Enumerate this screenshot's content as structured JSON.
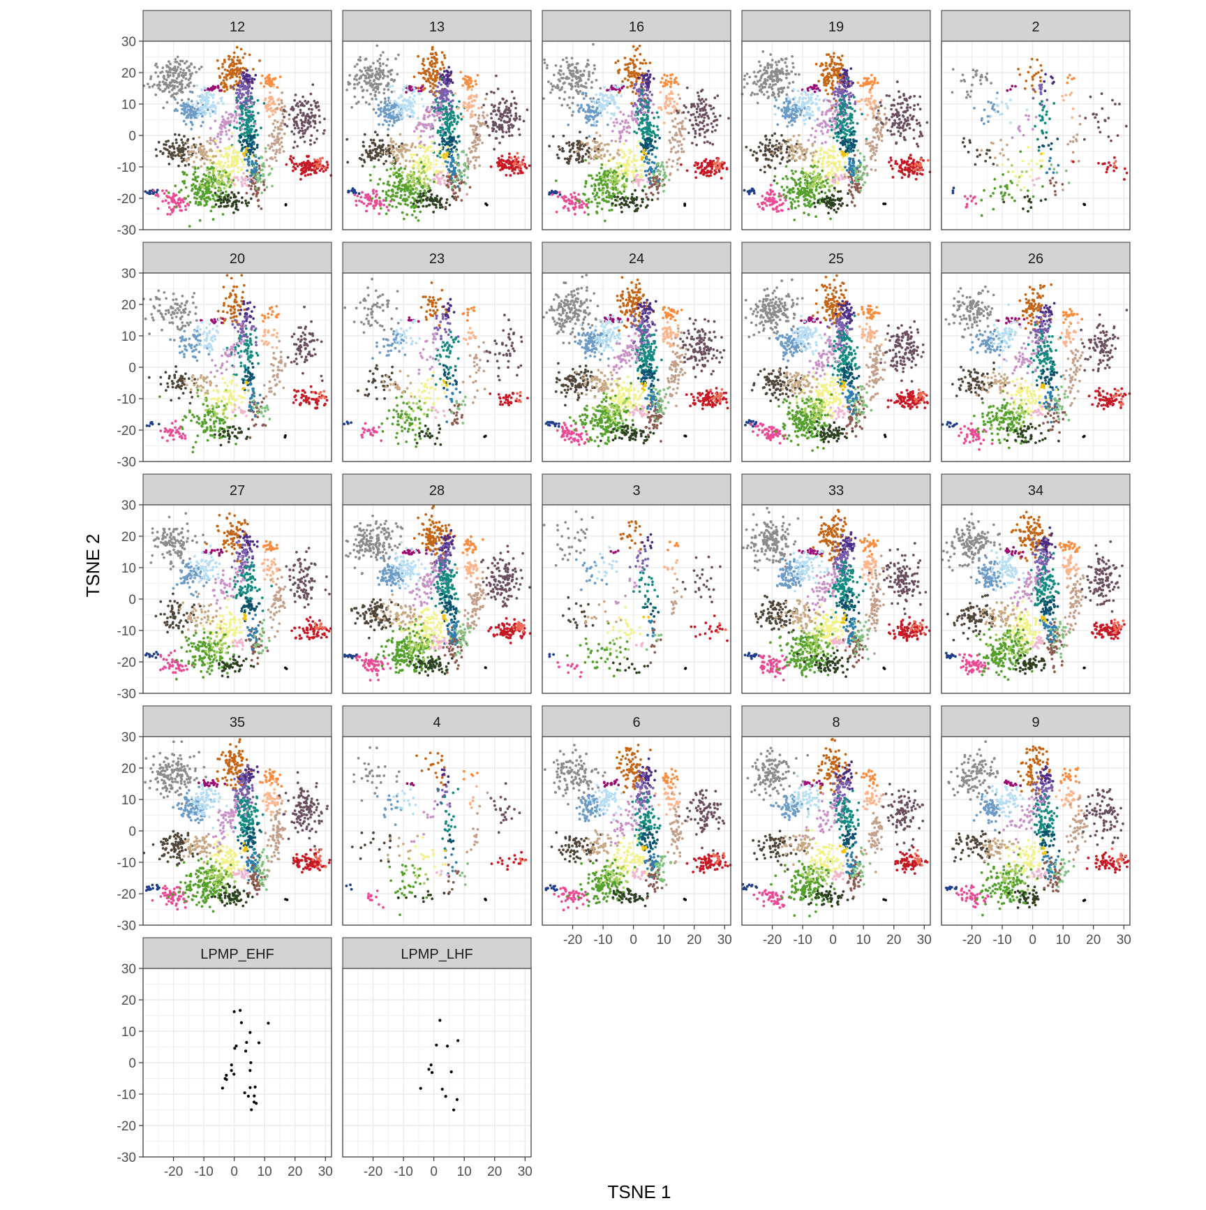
{
  "chart_data": {
    "type": "scatter",
    "facet_layout": "wrap",
    "facet_columns": 5,
    "xlabel": "TSNE 1",
    "ylabel": "TSNE 2",
    "xlim": [
      -30,
      32
    ],
    "ylim": [
      -30,
      30
    ],
    "x_ticks": [
      -20,
      -10,
      0,
      10,
      20,
      30
    ],
    "x_tick_labels": [
      "-20",
      "-10",
      "0",
      "10",
      "20",
      "30"
    ],
    "y_ticks": [
      -30,
      -20,
      -10,
      0,
      10,
      20,
      30
    ],
    "y_tick_labels": [
      "-30",
      "-20",
      "-10",
      "0",
      "10",
      "20",
      "30"
    ],
    "grid": true,
    "legend": "none",
    "panels": [
      {
        "label": "12",
        "density": 1.0
      },
      {
        "label": "13",
        "density": 1.0
      },
      {
        "label": "16",
        "density": 0.85
      },
      {
        "label": "19",
        "density": 1.0
      },
      {
        "label": "2",
        "density": 0.18
      },
      {
        "label": "20",
        "density": 0.55
      },
      {
        "label": "23",
        "density": 0.35
      },
      {
        "label": "24",
        "density": 1.0
      },
      {
        "label": "25",
        "density": 1.0
      },
      {
        "label": "26",
        "density": 0.7
      },
      {
        "label": "27",
        "density": 0.7
      },
      {
        "label": "28",
        "density": 1.0
      },
      {
        "label": "3",
        "density": 0.2
      },
      {
        "label": "33",
        "density": 1.0
      },
      {
        "label": "34",
        "density": 0.9
      },
      {
        "label": "35",
        "density": 1.0
      },
      {
        "label": "4",
        "density": 0.18
      },
      {
        "label": "6",
        "density": 0.75
      },
      {
        "label": "8",
        "density": 0.75
      },
      {
        "label": "9",
        "density": 0.7
      },
      {
        "label": "LPMP_EHF",
        "density": 0.0
      },
      {
        "label": "LPMP_LHF",
        "density": 0.0
      }
    ],
    "clusters": [
      {
        "color": "#8c8c8c",
        "cx": -20,
        "cy": 18,
        "sx": 4,
        "sy": 3.5,
        "n": 160,
        "tilt": 0.55
      },
      {
        "color": "#c46516",
        "cx": 0,
        "cy": 20,
        "sx": 2.4,
        "sy": 3.5,
        "n": 110,
        "tilt": 0
      },
      {
        "color": "#4b2c84",
        "cx": 4.5,
        "cy": 17.5,
        "sx": 1.2,
        "sy": 1.8,
        "n": 40,
        "tilt": 0
      },
      {
        "color": "#f98c3e",
        "cx": 12,
        "cy": 17,
        "sx": 1.5,
        "sy": 1.2,
        "n": 30,
        "tilt": 0
      },
      {
        "color": "#9b0c73",
        "cx": -7,
        "cy": 15,
        "sx": 1.8,
        "sy": 0.5,
        "n": 20,
        "tilt": 0
      },
      {
        "color": "#6c9bc5",
        "cx": -14,
        "cy": 7.5,
        "sx": 2.3,
        "sy": 2.2,
        "n": 90,
        "tilt": 0
      },
      {
        "color": "#b7def3",
        "cx": -9,
        "cy": 10,
        "sx": 2.5,
        "sy": 2.5,
        "n": 80,
        "tilt": 0
      },
      {
        "color": "#7a5fae",
        "cx": 3,
        "cy": 12,
        "sx": 1.6,
        "sy": 3,
        "n": 70,
        "tilt": 0
      },
      {
        "color": "#138a80",
        "cx": 4,
        "cy": 4,
        "sx": 2,
        "sy": 4,
        "n": 120,
        "tilt": 0
      },
      {
        "color": "#0a4f6b",
        "cx": 5,
        "cy": -3,
        "sx": 1.4,
        "sy": 2,
        "n": 45,
        "tilt": 0
      },
      {
        "color": "#c892c7",
        "cx": -2,
        "cy": 4,
        "sx": 2,
        "sy": 4,
        "n": 60,
        "tilt": -0.6
      },
      {
        "color": "#fcb48c",
        "cx": 12,
        "cy": 10,
        "sx": 1.5,
        "sy": 2,
        "n": 40,
        "tilt": 0
      },
      {
        "color": "#c3a08a",
        "cx": 14,
        "cy": -1,
        "sx": 1.3,
        "sy": 5,
        "n": 70,
        "tilt": -0.15
      },
      {
        "color": "#6a4e5d",
        "cx": 23,
        "cy": 6,
        "sx": 3,
        "sy": 4,
        "n": 120,
        "tilt": 0
      },
      {
        "color": "#c51824",
        "cx": 25,
        "cy": -10,
        "sx": 3,
        "sy": 1.5,
        "n": 90,
        "tilt": 0
      },
      {
        "color": "#f26b55",
        "cx": 28,
        "cy": -9,
        "sx": 1,
        "sy": 1.2,
        "n": 15,
        "tilt": 0
      },
      {
        "color": "#1f3d8a",
        "cx": -27,
        "cy": -18,
        "sx": 1.2,
        "sy": 0.5,
        "n": 15,
        "tilt": 0
      },
      {
        "color": "#e94a94",
        "cx": -20,
        "cy": -21,
        "sx": 2.5,
        "sy": 1.5,
        "n": 60,
        "tilt": -0.3
      },
      {
        "color": "#f2f28a",
        "cx": -2,
        "cy": -9,
        "sx": 3,
        "sy": 3,
        "n": 100,
        "tilt": 0
      },
      {
        "color": "#54a02c",
        "cx": -9,
        "cy": -17,
        "sx": 4,
        "sy": 3.5,
        "n": 180,
        "tilt": 0
      },
      {
        "color": "#a8cf62",
        "cx": -6,
        "cy": -14,
        "sx": 2.5,
        "sy": 2,
        "n": 40,
        "tilt": 0
      },
      {
        "color": "#2c3f20",
        "cx": -1,
        "cy": -21,
        "sx": 3,
        "sy": 1.5,
        "n": 60,
        "tilt": 0
      },
      {
        "color": "#8c5a4e",
        "cx": 7,
        "cy": -15,
        "sx": 1.5,
        "sy": 3,
        "n": 50,
        "tilt": 0
      },
      {
        "color": "#2e7fae",
        "cx": 6,
        "cy": -10,
        "sx": 1.2,
        "sy": 2.5,
        "n": 35,
        "tilt": 0
      },
      {
        "color": "#f0b5cf",
        "cx": 2,
        "cy": -14,
        "sx": 1.5,
        "sy": 1,
        "n": 20,
        "tilt": 0
      },
      {
        "color": "#f2c30f",
        "cx": 3.5,
        "cy": -6,
        "sx": 0.5,
        "sy": 0.8,
        "n": 8,
        "tilt": 0
      },
      {
        "color": "#4f4438",
        "cx": -19,
        "cy": -5,
        "sx": 3.5,
        "sy": 2.5,
        "n": 90,
        "tilt": 0
      },
      {
        "color": "#c8a986",
        "cx": -11,
        "cy": -5,
        "sx": 3,
        "sy": 2,
        "n": 60,
        "tilt": 0
      },
      {
        "color": "#7fc17d",
        "cx": 9,
        "cy": -12,
        "sx": 1.5,
        "sy": 3,
        "n": 30,
        "tilt": 0
      },
      {
        "color": "#000000",
        "cx": 17,
        "cy": -22,
        "sx": 0.2,
        "sy": 0.2,
        "n": 2,
        "tilt": 0
      }
    ],
    "sparse_points": [
      {
        "x": 0.2,
        "y": 15.5
      },
      {
        "x": -1.5,
        "y": -2.5
      },
      {
        "x": -3.0,
        "y": -6.0
      },
      {
        "x": -4.0,
        "y": -7.5
      },
      {
        "x": -2.0,
        "y": -4.0
      },
      {
        "x": -0.5,
        "y": -3.0
      },
      {
        "x": 0.0,
        "y": 5.0
      },
      {
        "x": 1.0,
        "y": 4.8
      },
      {
        "x": 3.0,
        "y": 4.5
      },
      {
        "x": 4.5,
        "y": 6.0
      },
      {
        "x": 5.5,
        "y": 10.0
      },
      {
        "x": 7.5,
        "y": 7.0
      },
      {
        "x": 6.0,
        "y": 0.5
      },
      {
        "x": 6.0,
        "y": -3.0
      },
      {
        "x": 7.0,
        "y": -7.0
      },
      {
        "x": 4.0,
        "y": -10.0
      },
      {
        "x": 6.5,
        "y": -12.0
      },
      {
        "x": 6.0,
        "y": -15.0
      },
      {
        "x": 10.5,
        "y": 12.0
      },
      {
        "x": 2.5,
        "y": 13.0
      },
      {
        "x": 1.5,
        "y": 16.5
      },
      {
        "x": 3.0,
        "y": -9.0
      },
      {
        "x": 5.0,
        "y": -8.0
      },
      {
        "x": 7.0,
        "y": -11.0
      },
      {
        "x": 8.0,
        "y": -13.0
      },
      {
        "x": -1.0,
        "y": 0.0
      },
      {
        "x": -2.5,
        "y": -5.0
      }
    ],
    "sparse_panels": [
      "LPMP_EHF",
      "LPMP_LHF"
    ],
    "point_color_sparse": "#000000",
    "strip_fill": "#d3d3d3",
    "strip_border": "#333333",
    "grid_color": "#ebebeb",
    "panel_border": "#333333"
  }
}
